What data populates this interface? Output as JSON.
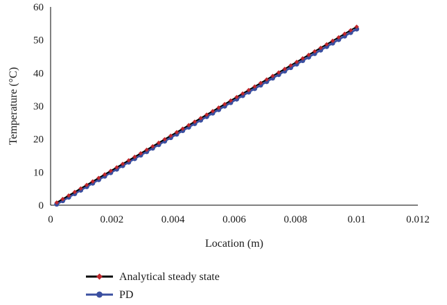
{
  "chart_data": {
    "type": "line",
    "xlabel": "Location (m)",
    "ylabel": "Temperature (°C)",
    "xlim": [
      0,
      0.012
    ],
    "ylim": [
      0,
      60
    ],
    "xticks": [
      "0",
      "0.002",
      "0.004",
      "0.006",
      "0.008",
      "0.01",
      "0.012"
    ],
    "yticks": [
      "0",
      "10",
      "20",
      "30",
      "40",
      "50",
      "60"
    ],
    "grid": false,
    "legend_position": "bottom",
    "series": [
      {
        "name": "Analytical steady state",
        "color": "#c0282d",
        "line_color": "#000000",
        "marker": "diamond",
        "x_start": 0.0002,
        "x_end": 0.01,
        "y_start": 0.8,
        "y_end": 54.0
      },
      {
        "name": "PD",
        "color": "#3a4fa0",
        "line_color": "#3a4fa0",
        "marker": "circle",
        "x_start": 0.0002,
        "x_end": 0.01,
        "y_start": 0.3,
        "y_end": 53.3
      }
    ],
    "points_per_series": 51
  }
}
